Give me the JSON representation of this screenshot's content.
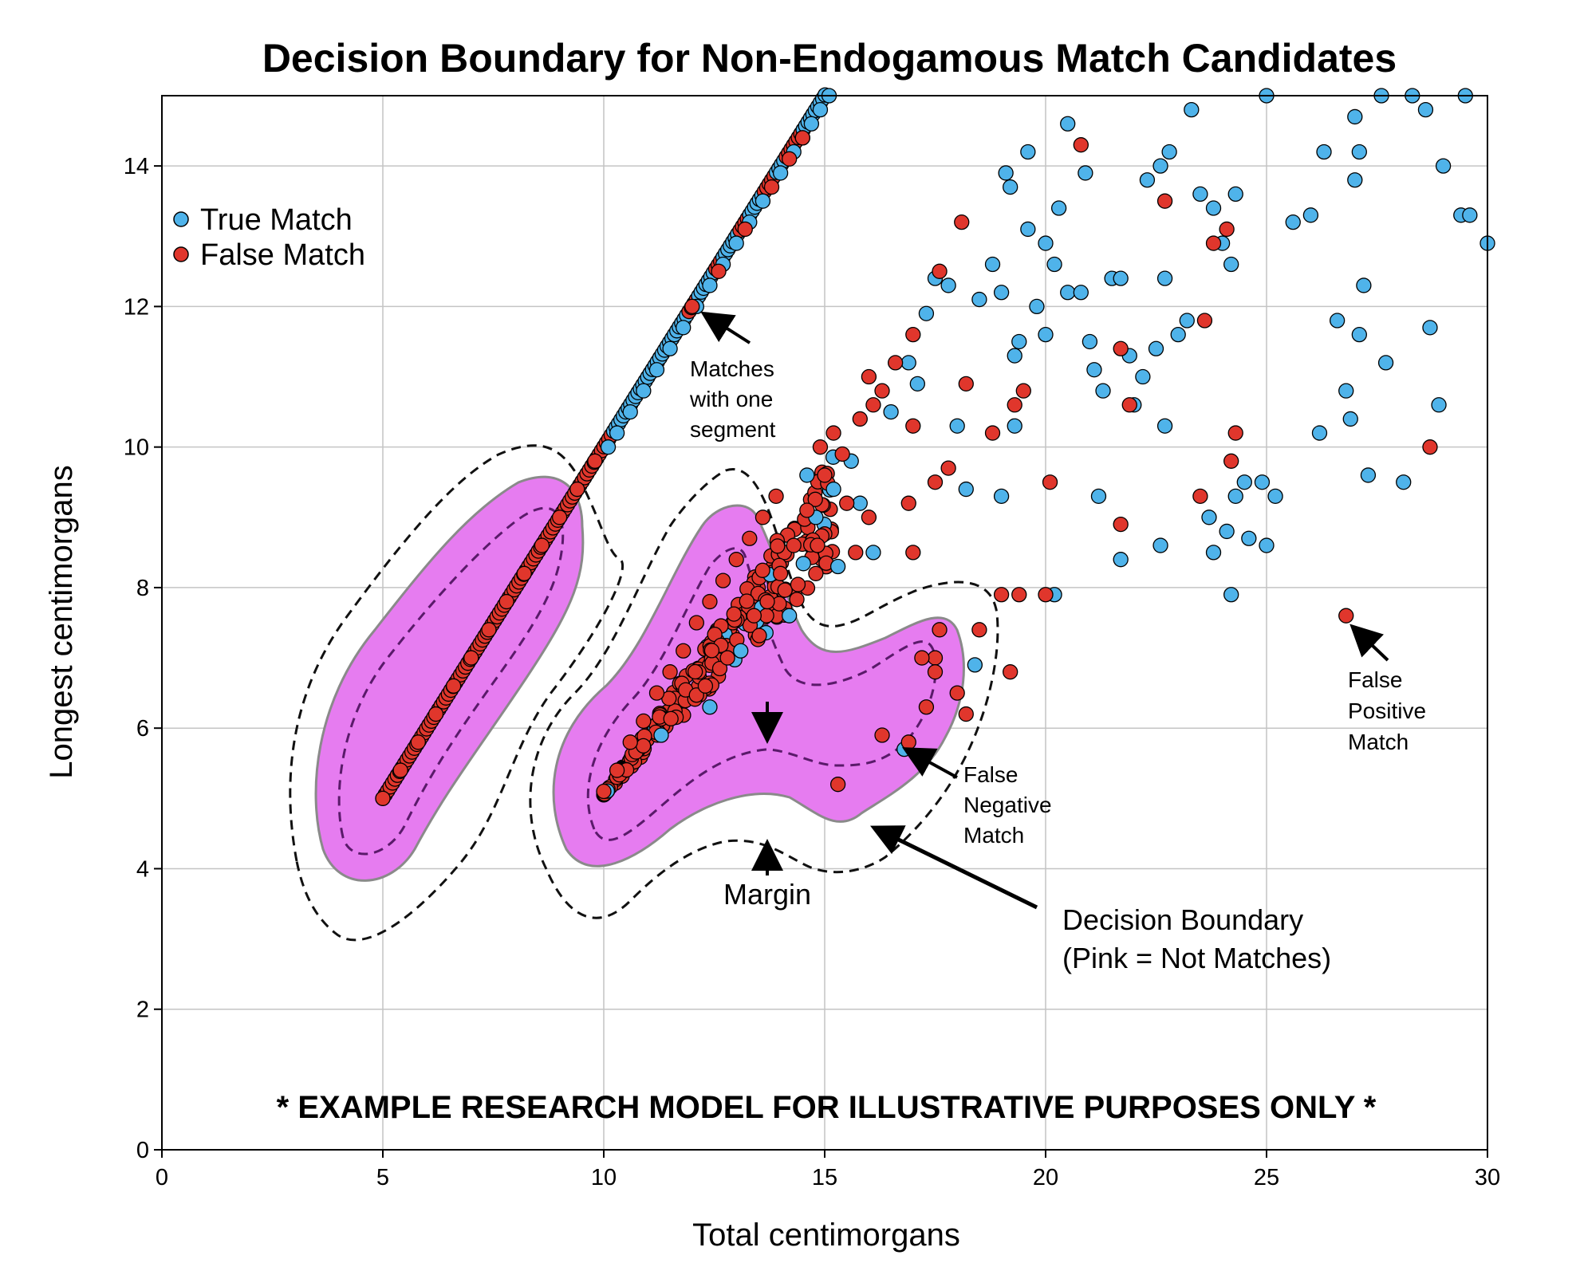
{
  "chart_data": {
    "type": "scatter",
    "title": "Decision Boundary for Non-Endogamous Match Candidates",
    "xlabel": "Total centimorgans",
    "ylabel": "Longest centimorgans",
    "xlim": [
      0,
      30
    ],
    "ylim": [
      0,
      15
    ],
    "xticks": [
      "0",
      "5",
      "10",
      "15",
      "20",
      "25",
      "30"
    ],
    "yticks": [
      "0",
      "2",
      "4",
      "6",
      "8",
      "10",
      "12",
      "14"
    ],
    "grid": true,
    "legend_position": "top-left",
    "colors": {
      "true_match": "#4fb3ea",
      "false_match": "#e0362c",
      "region": "#e67cf0",
      "region_stroke": "#8a8a8a"
    },
    "series": [
      {
        "name": "True Match",
        "points": [
          [
            15.1,
            15.0
          ],
          [
            14.9,
            14.8
          ],
          [
            14.7,
            14.6
          ],
          [
            14.5,
            14.4
          ],
          [
            14.3,
            14.2
          ],
          [
            14.0,
            13.9
          ],
          [
            13.6,
            13.5
          ],
          [
            13.3,
            13.2
          ],
          [
            13.0,
            12.9
          ],
          [
            12.7,
            12.6
          ],
          [
            12.4,
            12.3
          ],
          [
            12.1,
            12.0
          ],
          [
            11.8,
            11.7
          ],
          [
            11.5,
            11.4
          ],
          [
            11.2,
            11.1
          ],
          [
            10.9,
            10.8
          ],
          [
            10.6,
            10.5
          ],
          [
            10.3,
            10.2
          ],
          [
            10.1,
            10.0
          ],
          [
            14.6,
            9.6
          ],
          [
            14.8,
            9.0
          ],
          [
            15.2,
            9.4
          ],
          [
            15.6,
            9.8
          ],
          [
            15.8,
            9.2
          ],
          [
            15.3,
            8.3
          ],
          [
            14.2,
            7.6
          ],
          [
            13.1,
            7.1
          ],
          [
            12.4,
            6.3
          ],
          [
            11.3,
            5.9
          ],
          [
            16.1,
            8.5
          ],
          [
            16.5,
            10.5
          ],
          [
            17.1,
            10.9
          ],
          [
            16.9,
            11.2
          ],
          [
            17.3,
            11.9
          ],
          [
            17.8,
            12.3
          ],
          [
            17.5,
            12.4
          ],
          [
            18.0,
            10.3
          ],
          [
            18.2,
            9.4
          ],
          [
            18.5,
            12.1
          ],
          [
            18.8,
            12.6
          ],
          [
            19.0,
            12.2
          ],
          [
            19.2,
            13.7
          ],
          [
            19.1,
            13.9
          ],
          [
            19.6,
            14.2
          ],
          [
            19.6,
            13.1
          ],
          [
            19.8,
            12.0
          ],
          [
            19.4,
            11.5
          ],
          [
            19.3,
            10.3
          ],
          [
            19.0,
            9.3
          ],
          [
            20.0,
            12.9
          ],
          [
            20.2,
            12.6
          ],
          [
            20.3,
            13.4
          ],
          [
            20.5,
            12.2
          ],
          [
            20.8,
            12.2
          ],
          [
            20.9,
            13.9
          ],
          [
            21.0,
            11.5
          ],
          [
            21.1,
            11.1
          ],
          [
            21.3,
            10.8
          ],
          [
            21.5,
            12.4
          ],
          [
            21.7,
            12.4
          ],
          [
            21.9,
            11.3
          ],
          [
            22.2,
            11.0
          ],
          [
            22.0,
            10.6
          ],
          [
            21.2,
            9.3
          ],
          [
            21.7,
            8.4
          ],
          [
            22.3,
            13.8
          ],
          [
            22.6,
            14.0
          ],
          [
            22.8,
            14.2
          ],
          [
            22.7,
            12.4
          ],
          [
            22.5,
            11.4
          ],
          [
            22.7,
            10.3
          ],
          [
            22.6,
            8.6
          ],
          [
            23.0,
            11.6
          ],
          [
            23.2,
            11.8
          ],
          [
            23.3,
            14.8
          ],
          [
            23.5,
            13.6
          ],
          [
            23.8,
            13.4
          ],
          [
            24.0,
            12.9
          ],
          [
            24.2,
            12.6
          ],
          [
            24.3,
            13.6
          ],
          [
            23.7,
            9.0
          ],
          [
            23.8,
            8.5
          ],
          [
            24.1,
            8.8
          ],
          [
            24.3,
            9.3
          ],
          [
            24.5,
            9.5
          ],
          [
            24.6,
            8.7
          ],
          [
            24.2,
            7.9
          ],
          [
            24.9,
            9.5
          ],
          [
            25.0,
            8.6
          ],
          [
            25.2,
            9.3
          ],
          [
            25.6,
            13.2
          ],
          [
            26.0,
            13.3
          ],
          [
            26.3,
            14.2
          ],
          [
            26.6,
            11.8
          ],
          [
            26.2,
            10.2
          ],
          [
            26.8,
            10.8
          ],
          [
            26.9,
            10.4
          ],
          [
            27.0,
            13.8
          ],
          [
            27.1,
            14.2
          ],
          [
            27.2,
            12.3
          ],
          [
            27.1,
            11.6
          ],
          [
            27.3,
            9.6
          ],
          [
            27.7,
            11.2
          ],
          [
            28.1,
            9.5
          ],
          [
            28.6,
            14.8
          ],
          [
            28.7,
            11.7
          ],
          [
            28.9,
            10.6
          ],
          [
            29.0,
            14.0
          ],
          [
            29.4,
            13.3
          ],
          [
            29.6,
            13.3
          ],
          [
            30.0,
            12.9
          ],
          [
            29.5,
            15.0
          ],
          [
            28.3,
            15.0
          ],
          [
            27.6,
            15.0
          ],
          [
            27.0,
            14.7
          ],
          [
            25.0,
            15.0
          ],
          [
            18.4,
            6.9
          ],
          [
            16.8,
            5.7
          ],
          [
            20.2,
            7.9
          ],
          [
            20.0,
            11.6
          ],
          [
            19.3,
            11.3
          ],
          [
            20.5,
            14.6
          ]
        ]
      },
      {
        "name": "False Match",
        "points": [
          [
            5.0,
            5.0
          ],
          [
            5.4,
            5.4
          ],
          [
            5.8,
            5.8
          ],
          [
            6.2,
            6.2
          ],
          [
            6.6,
            6.6
          ],
          [
            7.0,
            7.0
          ],
          [
            7.4,
            7.4
          ],
          [
            7.8,
            7.8
          ],
          [
            8.2,
            8.2
          ],
          [
            8.6,
            8.6
          ],
          [
            9.0,
            9.0
          ],
          [
            9.4,
            9.4
          ],
          [
            9.8,
            9.8
          ],
          [
            12.0,
            12.0
          ],
          [
            12.6,
            12.5
          ],
          [
            13.2,
            13.1
          ],
          [
            13.8,
            13.7
          ],
          [
            14.2,
            14.1
          ],
          [
            14.5,
            14.4
          ],
          [
            10.0,
            5.1
          ],
          [
            10.3,
            5.4
          ],
          [
            10.6,
            5.8
          ],
          [
            10.9,
            6.1
          ],
          [
            11.2,
            6.5
          ],
          [
            11.5,
            6.8
          ],
          [
            11.8,
            7.1
          ],
          [
            12.1,
            7.5
          ],
          [
            12.4,
            7.8
          ],
          [
            12.7,
            8.1
          ],
          [
            13.0,
            8.4
          ],
          [
            13.3,
            8.7
          ],
          [
            13.6,
            9.0
          ],
          [
            13.9,
            9.3
          ],
          [
            12.3,
            6.6
          ],
          [
            12.8,
            7.0
          ],
          [
            13.4,
            7.6
          ],
          [
            13.7,
            7.8
          ],
          [
            14.0,
            8.2
          ],
          [
            14.3,
            8.6
          ],
          [
            14.6,
            9.1
          ],
          [
            15.0,
            9.6
          ],
          [
            15.4,
            9.9
          ],
          [
            15.8,
            10.4
          ],
          [
            16.1,
            10.6
          ],
          [
            15.2,
            10.2
          ],
          [
            14.9,
            10.0
          ],
          [
            16.3,
            10.8
          ],
          [
            16.6,
            11.2
          ],
          [
            17.0,
            11.6
          ],
          [
            17.6,
            12.5
          ],
          [
            16.0,
            11.0
          ],
          [
            15.7,
            8.5
          ],
          [
            15.5,
            9.2
          ],
          [
            16.0,
            9.0
          ],
          [
            14.8,
            8.2
          ],
          [
            17.6,
            7.4
          ],
          [
            17.5,
            7.0
          ],
          [
            18.0,
            6.5
          ],
          [
            18.2,
            6.2
          ],
          [
            17.5,
            6.8
          ],
          [
            17.3,
            6.3
          ],
          [
            16.9,
            5.8
          ],
          [
            16.3,
            5.9
          ],
          [
            15.3,
            5.2
          ],
          [
            18.5,
            7.4
          ],
          [
            19.0,
            7.9
          ],
          [
            19.4,
            7.9
          ],
          [
            20.0,
            7.9
          ],
          [
            20.1,
            9.5
          ],
          [
            19.5,
            10.8
          ],
          [
            19.3,
            10.6
          ],
          [
            18.8,
            10.2
          ],
          [
            18.2,
            10.9
          ],
          [
            17.8,
            9.7
          ],
          [
            17.5,
            9.5
          ],
          [
            17.0,
            10.3
          ],
          [
            16.9,
            9.2
          ],
          [
            17.0,
            8.5
          ],
          [
            17.2,
            7.0
          ],
          [
            19.2,
            6.8
          ],
          [
            18.1,
            13.2
          ],
          [
            21.7,
            11.4
          ],
          [
            21.9,
            10.6
          ],
          [
            21.7,
            8.9
          ],
          [
            22.7,
            13.5
          ],
          [
            23.6,
            11.8
          ],
          [
            23.8,
            12.9
          ],
          [
            24.1,
            13.1
          ],
          [
            24.3,
            10.2
          ],
          [
            24.2,
            9.8
          ],
          [
            23.5,
            9.3
          ],
          [
            20.8,
            14.3
          ],
          [
            26.8,
            7.6
          ],
          [
            28.7,
            10.0
          ]
        ]
      }
    ],
    "annotations": {
      "one_segment": [
        "Matches",
        "with one",
        "segment"
      ],
      "false_positive": [
        "False",
        "Positive",
        "Match"
      ],
      "false_negative": [
        "False",
        "Negative",
        "Match"
      ],
      "decision_boundary": [
        "Decision Boundary",
        "(Pink = Not Matches)"
      ],
      "margin": "Margin",
      "disclaimer": "* EXAMPLE RESEARCH MODEL FOR ILLUSTRATIVE PURPOSES ONLY *"
    }
  }
}
